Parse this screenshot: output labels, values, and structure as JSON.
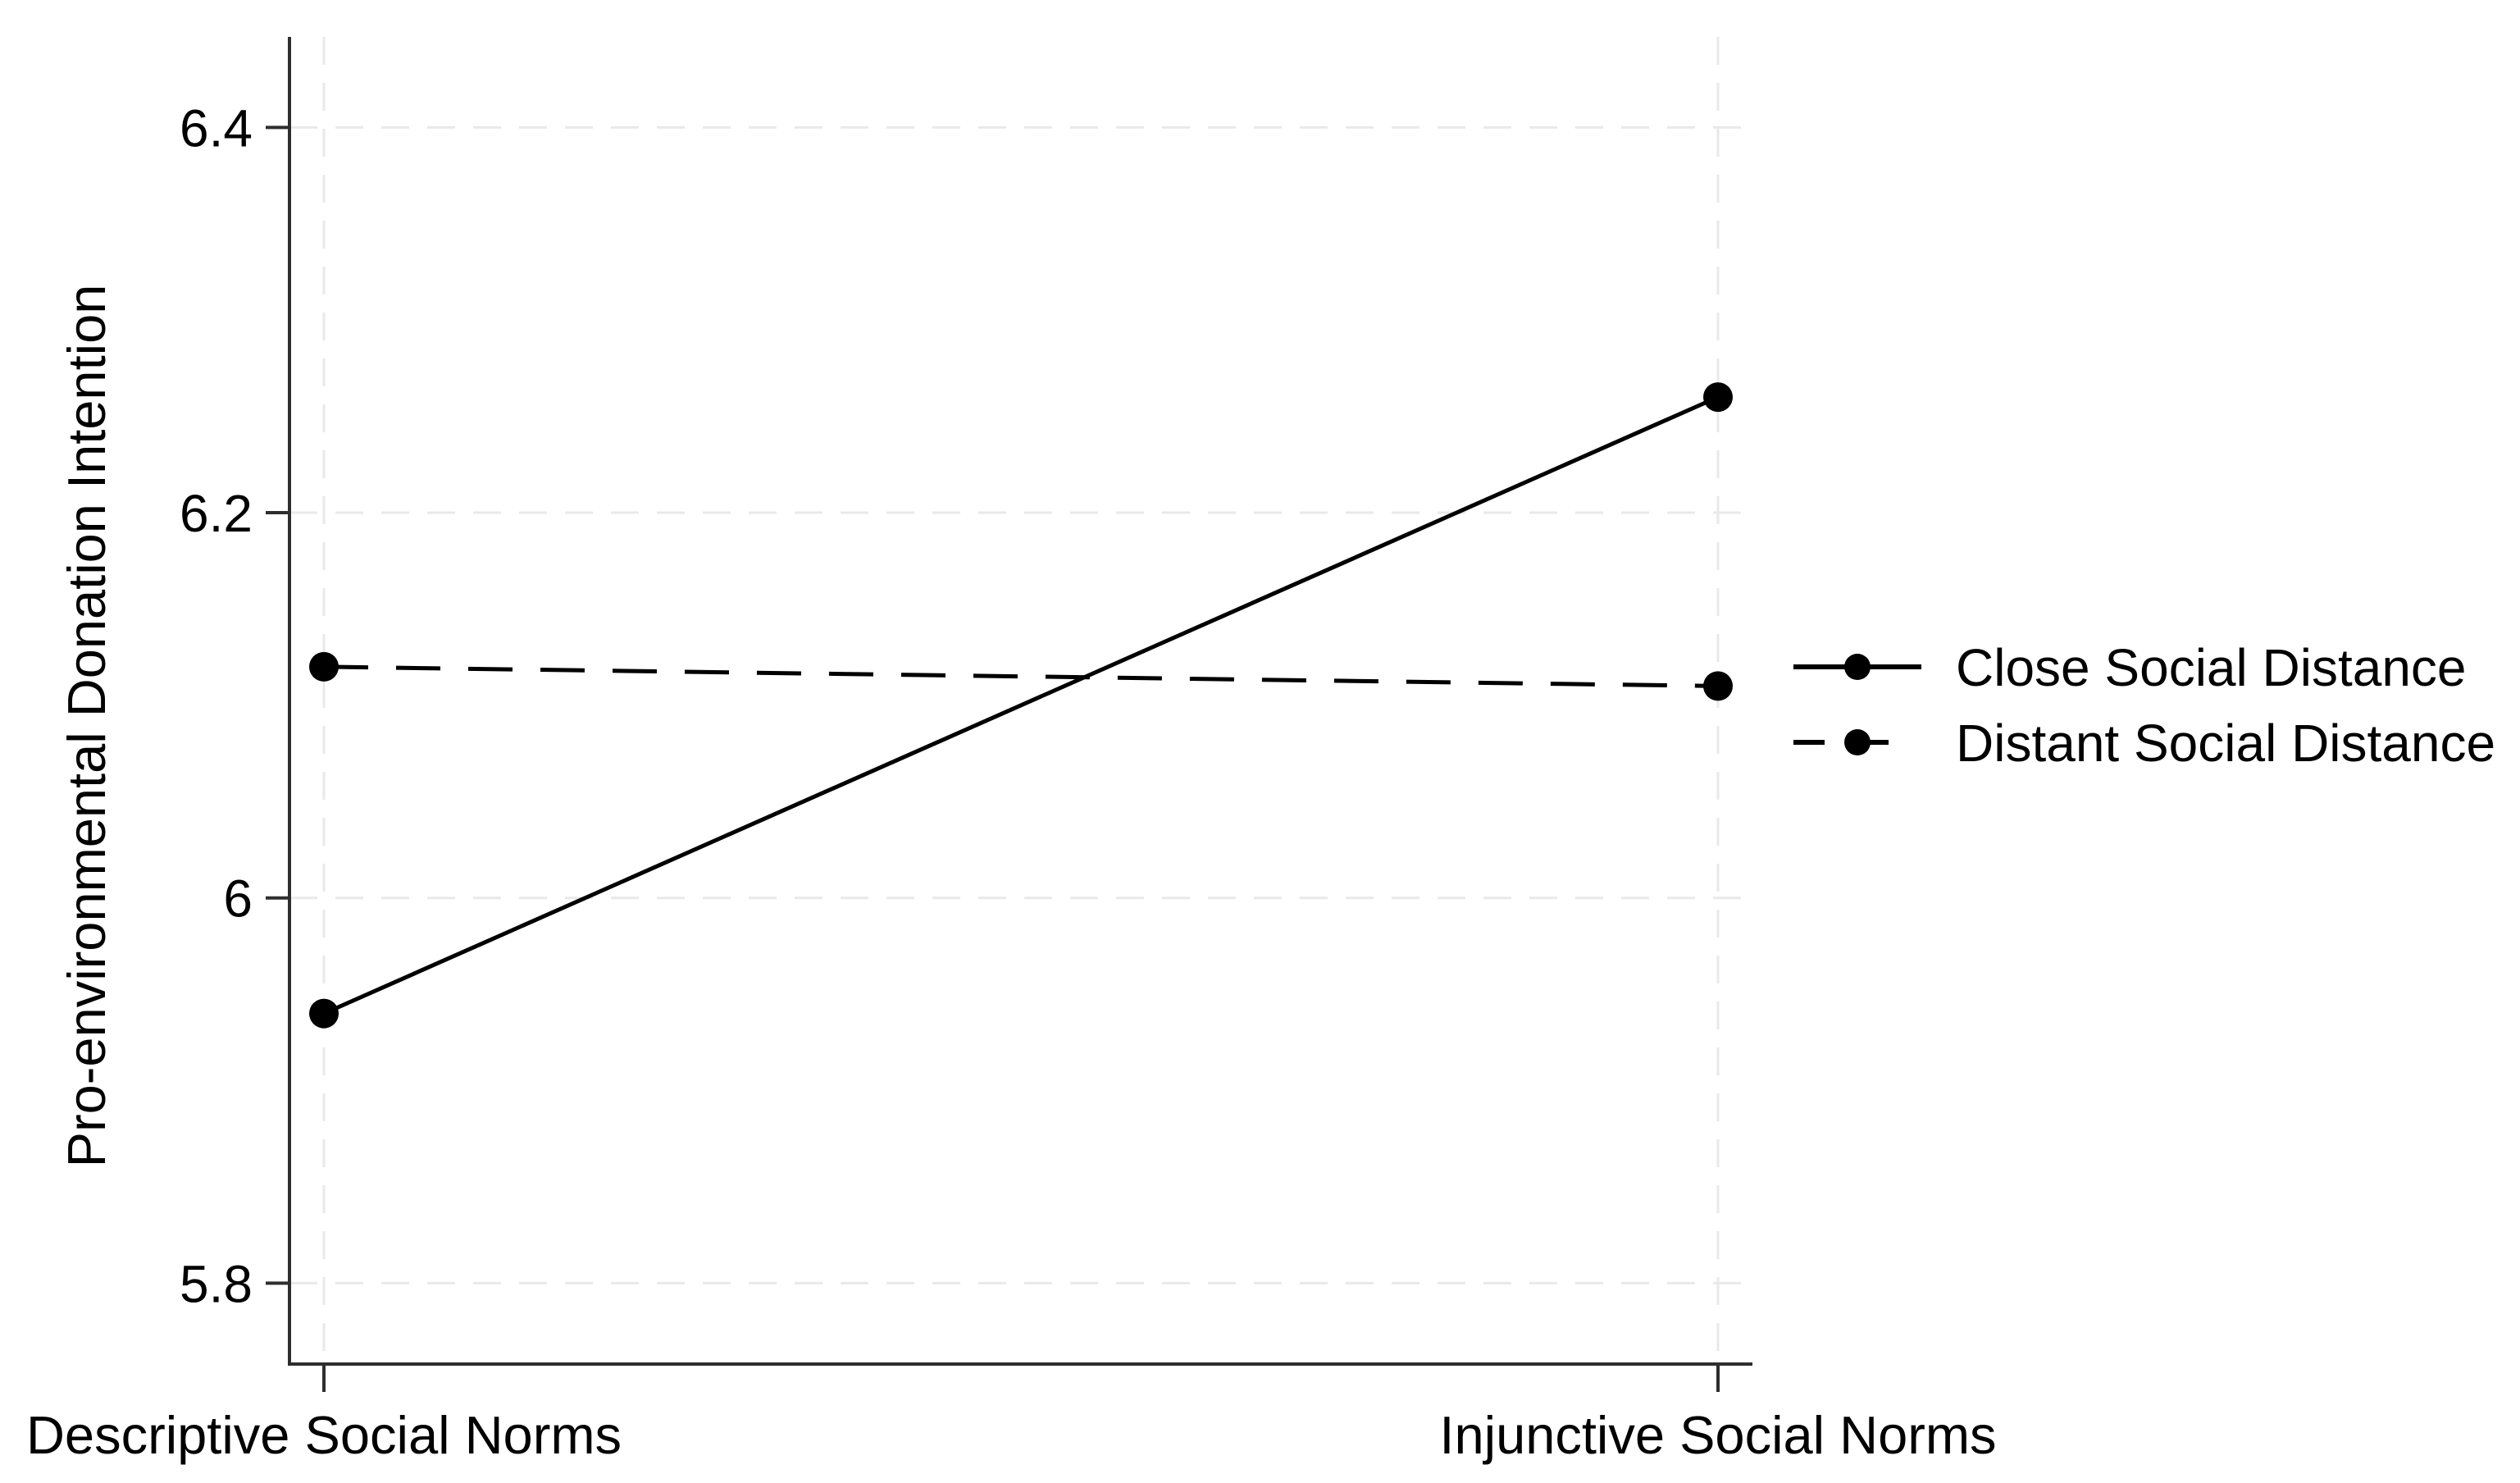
{
  "chart_data": {
    "type": "line",
    "title": "",
    "xlabel": "",
    "ylabel": "Pro-environmental Donation Intention",
    "categories": [
      "Descriptive Social Norms",
      "Injunctive Social Norms"
    ],
    "series": [
      {
        "name": "Close Social Distance",
        "line_style": "solid",
        "marker": "circle",
        "values": [
          5.94,
          6.26
        ]
      },
      {
        "name": "Distant Social Distance",
        "line_style": "dashed",
        "marker": "circle",
        "values": [
          6.12,
          6.11
        ]
      }
    ],
    "ylim": [
      5.758,
      6.447
    ],
    "yticks": [
      5.8,
      6,
      6.2,
      6.4
    ],
    "ytick_labels": [
      "5.8",
      "6",
      "6.2",
      "6.4"
    ],
    "grid": "both, light dashed at category x-positions and y-ticks",
    "legend_position": "right-middle"
  },
  "colors": {
    "background": "#ffffff",
    "series_line": "#000000",
    "marker_fill": "#000000",
    "axis_line": "#2e2e2e",
    "gridline": "#e9e9e9",
    "text": "#000000"
  }
}
